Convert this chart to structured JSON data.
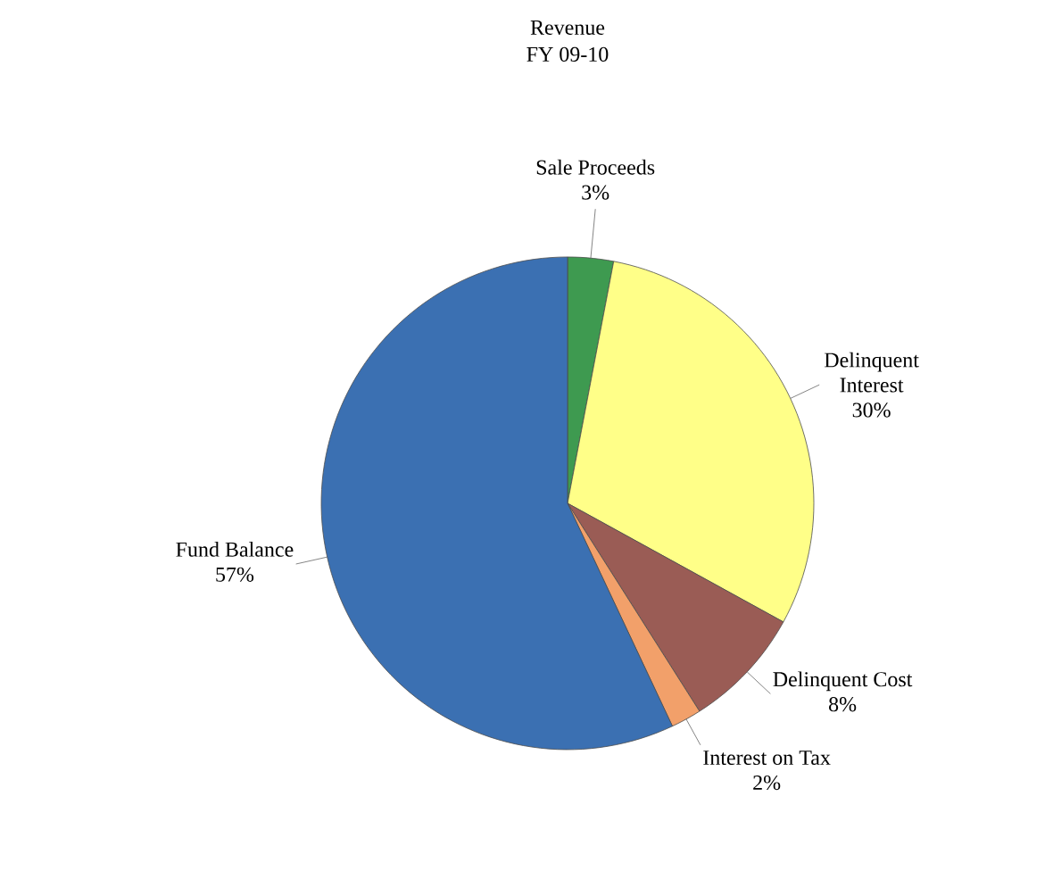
{
  "chart_data": {
    "type": "pie",
    "title": "Revenue",
    "subtitle": "FY 09-10",
    "categories": [
      "Sale Proceeds",
      "Delinquent Interest",
      "Delinquent Cost",
      "Interest on Tax",
      "Fund Balance"
    ],
    "values": [
      3,
      30,
      8,
      2,
      57
    ],
    "value_labels": [
      "3%",
      "30%",
      "8%",
      "2%",
      "57%"
    ],
    "colors": [
      "#3e9a50",
      "#ffff88",
      "#9a5c55",
      "#f2a06a",
      "#3b70b2"
    ]
  }
}
